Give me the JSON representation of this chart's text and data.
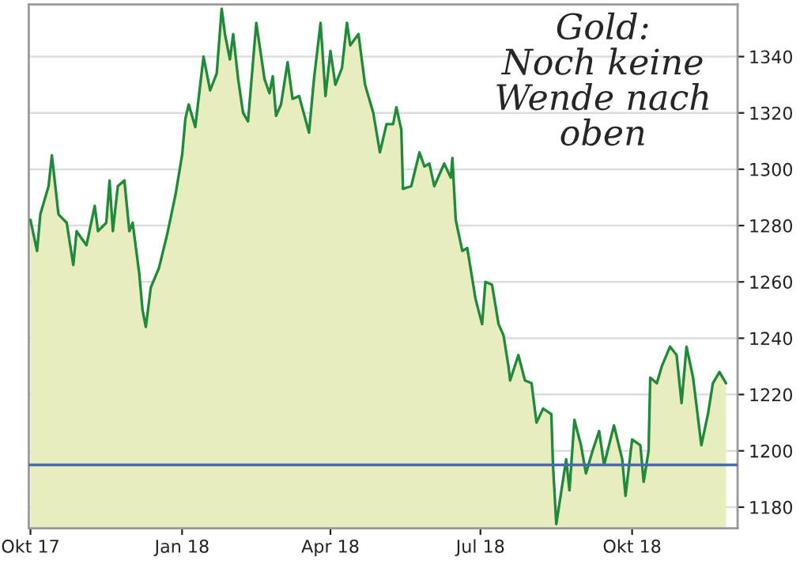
{
  "chart_data": {
    "type": "area",
    "title": "Gold:\nNoch keine\nWende nach\noben",
    "x": [
      "2017-10-01",
      "2017-10-05",
      "2017-10-07",
      "2017-10-12",
      "2017-10-14",
      "2017-10-18",
      "2017-10-23",
      "2017-10-27",
      "2017-10-29",
      "2017-11-04",
      "2017-11-09",
      "2017-11-11",
      "2017-11-16",
      "2017-11-18",
      "2017-11-20",
      "2017-11-23",
      "2017-11-27",
      "2017-11-30",
      "2017-12-02",
      "2017-12-06",
      "2017-12-08",
      "2017-12-10",
      "2017-12-13",
      "2017-12-18",
      "2017-12-23",
      "2017-12-28",
      "2018-01-01",
      "2018-01-03",
      "2018-01-05",
      "2018-01-09",
      "2018-01-14",
      "2018-01-18",
      "2018-01-22",
      "2018-01-25",
      "2018-01-27",
      "2018-01-30",
      "2018-02-01",
      "2018-02-04",
      "2018-02-07",
      "2018-02-10",
      "2018-02-15",
      "2018-02-20",
      "2018-02-23",
      "2018-02-25",
      "2018-02-27",
      "2018-03-02",
      "2018-03-06",
      "2018-03-09",
      "2018-03-13",
      "2018-03-19",
      "2018-03-22",
      "2018-03-26",
      "2018-03-29",
      "2018-04-01",
      "2018-04-04",
      "2018-04-08",
      "2018-04-11",
      "2018-04-13",
      "2018-04-18",
      "2018-04-22",
      "2018-04-27",
      "2018-05-01",
      "2018-05-05",
      "2018-05-09",
      "2018-05-11",
      "2018-05-14",
      "2018-05-15",
      "2018-05-20",
      "2018-05-25",
      "2018-05-28",
      "2018-05-31",
      "2018-06-03",
      "2018-06-09",
      "2018-06-13",
      "2018-06-14",
      "2018-06-16",
      "2018-06-20",
      "2018-06-23",
      "2018-06-28",
      "2018-07-02",
      "2018-07-04",
      "2018-07-08",
      "2018-07-12",
      "2018-07-15",
      "2018-07-18",
      "2018-07-19",
      "2018-07-24",
      "2018-07-28",
      "2018-08-01",
      "2018-08-04",
      "2018-08-08",
      "2018-08-13",
      "2018-08-14",
      "2018-08-16",
      "2018-08-22",
      "2018-08-24",
      "2018-08-27",
      "2018-08-31",
      "2018-09-03",
      "2018-09-07",
      "2018-09-11",
      "2018-09-14",
      "2018-09-20",
      "2018-09-25",
      "2018-09-27",
      "2018-10-01",
      "2018-10-06",
      "2018-10-08",
      "2018-10-11",
      "2018-10-12",
      "2018-10-16",
      "2018-10-19",
      "2018-10-24",
      "2018-10-28",
      "2018-10-31",
      "2018-11-03",
      "2018-11-07",
      "2018-11-12",
      "2018-11-16",
      "2018-11-19",
      "2018-11-23",
      "2018-11-27"
    ],
    "series": [
      {
        "color": "#1e8a3a",
        "values": [
          1282,
          1271,
          1284,
          1294,
          1305,
          1284,
          1281,
          1266,
          1278,
          1273,
          1287,
          1278,
          1281,
          1296,
          1278,
          1294,
          1296,
          1278,
          1281,
          1263,
          1250,
          1244,
          1258,
          1265,
          1277,
          1291,
          1305,
          1318,
          1323,
          1315,
          1340,
          1328,
          1334,
          1357,
          1348,
          1339,
          1348,
          1332,
          1320,
          1317,
          1352,
          1332,
          1327,
          1333,
          1319,
          1323,
          1338,
          1325,
          1326,
          1313,
          1332,
          1352,
          1326,
          1342,
          1330,
          1336,
          1352,
          1344,
          1348,
          1330,
          1320,
          1306,
          1316,
          1316,
          1322,
          1314,
          1293,
          1294,
          1306,
          1301,
          1302,
          1294,
          1302,
          1297,
          1304,
          1282,
          1271,
          1272,
          1254,
          1245,
          1260,
          1259,
          1245,
          1241,
          1230,
          1225,
          1234,
          1225,
          1224,
          1210,
          1215,
          1213,
          1195,
          1174,
          1197,
          1186,
          1211,
          1202,
          1192,
          1200,
          1207,
          1195,
          1209,
          1197,
          1184,
          1204,
          1202,
          1189,
          1200,
          1226,
          1224,
          1230,
          1237,
          1234,
          1217,
          1237,
          1226,
          1202,
          1213,
          1224,
          1228,
          1224
        ]
      }
    ],
    "xlim": [
      "2017-09-30",
      "2018-12-04"
    ],
    "xticks": [
      {
        "value": "2017-10-01",
        "label": "Okt 17"
      },
      {
        "value": "2018-01-01",
        "label": "Jan 18"
      },
      {
        "value": "2018-04-01",
        "label": "Apr 18"
      },
      {
        "value": "2018-07-01",
        "label": "Jul 18"
      },
      {
        "value": "2018-10-01",
        "label": "Okt 18"
      }
    ],
    "ylim": [
      1172.5,
      1358.5
    ],
    "yticks": [
      1180,
      1200,
      1220,
      1240,
      1260,
      1280,
      1300,
      1320,
      1340
    ],
    "ref_lines": [
      {
        "axis": "y",
        "value": 1195,
        "color": "#4a6aa8"
      }
    ],
    "grid": "y",
    "legend": false
  }
}
